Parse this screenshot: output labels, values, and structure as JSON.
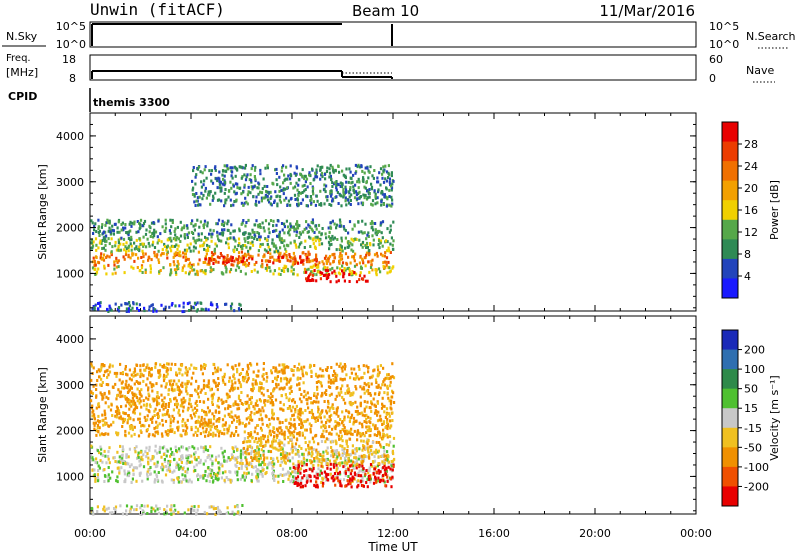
{
  "header": {
    "station": "Unwin (fitACF)",
    "beam": "Beam 10",
    "date": "11/Mar/2016"
  },
  "strips": {
    "nsky_label": "N.Sky",
    "nsky_ticks": [
      "10^5",
      "10^0"
    ],
    "nsearch_label": "N.Search",
    "freq_label_1": "Freq.",
    "freq_label_2": "[MHz]",
    "freq_ticks": [
      "18",
      "8"
    ],
    "nave_ticks": [
      "60",
      "0"
    ],
    "nave_label": "Nave",
    "cpid_label": "CPID",
    "cpid_value": "themis 3300"
  },
  "axes": {
    "xlabel": "Time UT",
    "ylabel": "Slant Range [km]",
    "xticks": [
      "00:00",
      "04:00",
      "08:00",
      "12:00",
      "16:00",
      "20:00",
      "00:00"
    ],
    "yticks": [
      "1000",
      "2000",
      "3000",
      "4000"
    ],
    "xlim_hours": [
      0,
      24
    ],
    "ylim_km": [
      180,
      4500
    ]
  },
  "power_bar": {
    "label": "Power [dB]",
    "ticks": [
      "4",
      "8",
      "12",
      "16",
      "20",
      "24",
      "28"
    ],
    "colors": [
      "#1a1aff",
      "#2244bb",
      "#2f8a55",
      "#56a84a",
      "#f0d000",
      "#f3a000",
      "#f07000",
      "#ec3c00",
      "#e80000"
    ]
  },
  "velocity_bar": {
    "label": "Velocity [m s⁻¹]",
    "ticks": [
      "200",
      "100",
      "50",
      "15",
      "-15",
      "-50",
      "-100",
      "-200"
    ],
    "colors": [
      "#1a2ab8",
      "#2f6fb0",
      "#2e8a4a",
      "#4fc030",
      "#c8c8c8",
      "#f0c020",
      "#f09000",
      "#f05000",
      "#e80000"
    ]
  },
  "chart_data": [
    {
      "type": "heatmap",
      "title": "Power [dB]",
      "xlabel": "Time UT",
      "ylabel": "Slant Range [km]",
      "xlim": [
        0,
        24
      ],
      "ylim": [
        180,
        4500
      ],
      "colorbar_range": [
        0,
        30
      ],
      "data_time_range_hours": [
        0,
        12
      ],
      "regions": [
        {
          "t": [
            0,
            12
          ],
          "range_km": [
            1200,
            1500
          ],
          "power_db": 21
        },
        {
          "t": [
            0,
            12
          ],
          "range_km": [
            1000,
            1200
          ],
          "power_db": 14
        },
        {
          "t": [
            0,
            12
          ],
          "range_km": [
            1500,
            1800
          ],
          "power_db": 12
        },
        {
          "t": [
            0,
            12
          ],
          "range_km": [
            1800,
            2200
          ],
          "power_db": 9
        },
        {
          "t": [
            4.5,
            9
          ],
          "range_km": [
            1250,
            1400
          ],
          "power_db": 27
        },
        {
          "t": [
            8.5,
            11
          ],
          "range_km": [
            850,
            1100
          ],
          "power_db": 29
        },
        {
          "t": [
            4,
            12
          ],
          "range_km": [
            2500,
            3400
          ],
          "power_db": 8
        },
        {
          "t": [
            0,
            6
          ],
          "range_km": [
            200,
            400
          ],
          "power_db": 5
        }
      ]
    },
    {
      "type": "heatmap",
      "title": "Velocity [m s⁻¹]",
      "xlabel": "Time UT",
      "ylabel": "Slant Range [km]",
      "xlim": [
        0,
        24
      ],
      "ylim": [
        180,
        4500
      ],
      "colorbar_range": [
        -250,
        250
      ],
      "data_time_range_hours": [
        0,
        12
      ],
      "regions": [
        {
          "t": [
            0,
            12
          ],
          "range_km": [
            900,
            1700
          ],
          "velocity": 0
        },
        {
          "t": [
            8,
            12
          ],
          "range_km": [
            800,
            1300
          ],
          "velocity": -220
        },
        {
          "t": [
            6,
            12
          ],
          "range_km": [
            1300,
            1900
          ],
          "velocity": -40
        },
        {
          "t": [
            0,
            12
          ],
          "range_km": [
            1900,
            3500
          ],
          "velocity": -60
        },
        {
          "t": [
            0,
            6
          ],
          "range_km": [
            200,
            400
          ],
          "velocity": 0
        }
      ]
    }
  ]
}
